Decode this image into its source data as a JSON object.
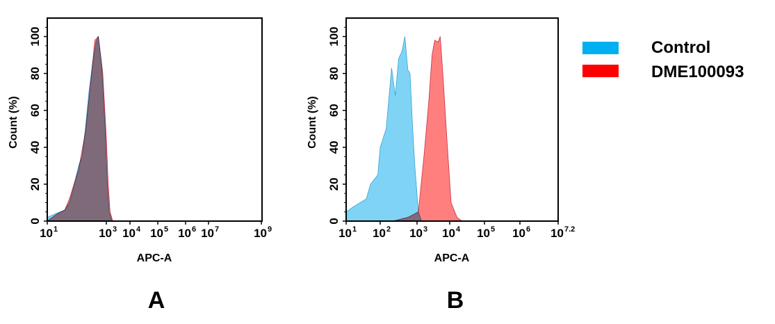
{
  "legend": {
    "items": [
      {
        "label": "Control",
        "color": "#00b0f0"
      },
      {
        "label": "DME100093",
        "color": "#ff0000"
      }
    ],
    "placement": "right"
  },
  "chart_data": [
    {
      "type": "area",
      "panel_label": "A",
      "xlabel": "APC-A",
      "ylabel": "Count (%)",
      "xscale": "log",
      "xticks": [
        {
          "base": "10",
          "exp": "1",
          "value": 1
        },
        {
          "base": "10",
          "exp": "3",
          "value": 3
        },
        {
          "base": "10",
          "exp": "4",
          "value": 4
        },
        {
          "base": "10",
          "exp": "5",
          "value": 5
        },
        {
          "base": "10",
          "exp": "6",
          "value": 6
        },
        {
          "base": "10",
          "exp": "7",
          "value": 7
        },
        {
          "base": "10",
          "exp": "9",
          "value": 9
        }
      ],
      "yticks": [
        "0",
        "20",
        "40",
        "60",
        "80",
        "100"
      ],
      "ylim": [
        0,
        110
      ],
      "grid": false,
      "series": [
        {
          "name": "DME100093",
          "color": "#ff0000",
          "x": [
            10,
            22,
            39,
            56,
            115,
            195,
            309,
            407,
            537,
            759,
            1000,
            1202,
            1445,
            1862
          ],
          "y": [
            0,
            4,
            6,
            12,
            28,
            48,
            78,
            98,
            100,
            80,
            45,
            20,
            5,
            0
          ]
        },
        {
          "name": "Control",
          "color": "#00b0f0",
          "x": [
            10,
            19,
            39,
            56,
            72,
            115,
            151,
            195,
            257,
            339,
            447,
            537,
            692,
            912,
            1096,
            1318,
            1738
          ],
          "y": [
            2,
            4,
            6,
            10,
            16,
            30,
            35,
            50,
            70,
            85,
            97,
            100,
            85,
            50,
            20,
            5,
            0
          ]
        }
      ]
    },
    {
      "type": "area",
      "panel_label": "B",
      "xlabel": "APC-A",
      "ylabel": "Count (%)",
      "xscale": "log",
      "xticks": [
        {
          "base": "10",
          "exp": "1",
          "value": 1
        },
        {
          "base": "10",
          "exp": "2",
          "value": 2
        },
        {
          "base": "10",
          "exp": "3",
          "value": 3
        },
        {
          "base": "10",
          "exp": "4",
          "value": 4
        },
        {
          "base": "10",
          "exp": "5",
          "value": 5
        },
        {
          "base": "10",
          "exp": "6",
          "value": 6
        },
        {
          "base": "10",
          "exp": "7.2",
          "value": 7.2
        }
      ],
      "yticks": [
        "0",
        "20",
        "40",
        "60",
        "80",
        "100"
      ],
      "ylim": [
        0,
        110
      ],
      "grid": false,
      "series": [
        {
          "name": "Control",
          "color": "#00b0f0",
          "x": [
            10,
            17,
            39,
            52,
            85,
            100,
            145,
            204,
            257,
            316,
            389,
            468,
            562,
            646,
            759,
            871,
            1096,
            1380
          ],
          "y": [
            5,
            8,
            12,
            20,
            25,
            40,
            50,
            83,
            68,
            88,
            92,
            100,
            82,
            80,
            50,
            30,
            5,
            0
          ]
        },
        {
          "name": "DME100093",
          "color": "#ff0000",
          "x": [
            219,
            562,
            1096,
            1622,
            2291,
            2884,
            3467,
            4365,
            5129,
            6166,
            8511,
            10965,
            16218,
            22909
          ],
          "y": [
            0,
            2,
            5,
            35,
            65,
            90,
            98,
            97,
            100,
            80,
            40,
            10,
            2,
            0
          ]
        }
      ]
    }
  ]
}
